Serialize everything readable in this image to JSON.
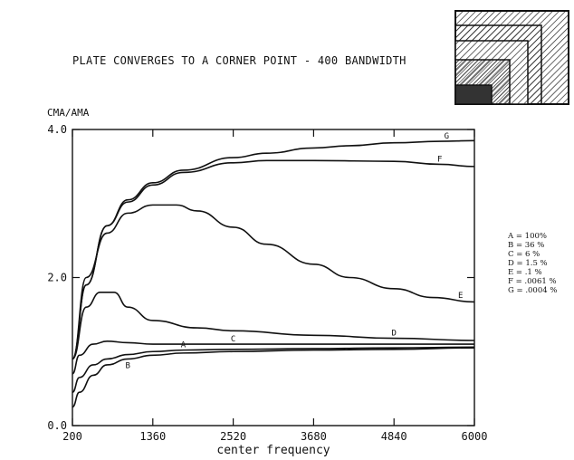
{
  "chart_data": {
    "type": "line",
    "title": "PLATE CONVERGES TO A CORNER POINT - 400 BANDWIDTH",
    "ylabel": "CMA/AMA",
    "xlabel": "center frequency",
    "xlim": [
      200,
      6000
    ],
    "ylim": [
      0,
      4
    ],
    "xticks": [
      "200",
      "1360",
      "2520",
      "3680",
      "4840",
      "6000"
    ],
    "yticks": [
      "0.0",
      "2.0",
      "4.0"
    ],
    "grid": false,
    "legend_position": "right",
    "legend": [
      "A = 100%",
      "B = 36 %",
      "C = 6 %",
      "D = 1.5 %",
      "E = .1 %",
      "F = .0061 %",
      "G = .0004 %"
    ],
    "series": [
      {
        "name": "A",
        "x": [
          200,
          300,
          500,
          700,
          1000,
          1360,
          1800,
          2520,
          3680,
          4840,
          6000
        ],
        "y": [
          0.45,
          0.65,
          0.82,
          0.9,
          0.96,
          1.0,
          1.02,
          1.03,
          1.04,
          1.05,
          1.06
        ]
      },
      {
        "name": "B",
        "x": [
          200,
          300,
          500,
          700,
          1000,
          1360,
          1800,
          2520,
          3680,
          4840,
          6000
        ],
        "y": [
          0.25,
          0.45,
          0.68,
          0.82,
          0.9,
          0.95,
          0.98,
          1.0,
          1.02,
          1.03,
          1.05
        ]
      },
      {
        "name": "C",
        "x": [
          200,
          300,
          500,
          700,
          1000,
          1360,
          2000,
          2520,
          3680,
          4840,
          6000
        ],
        "y": [
          0.7,
          0.95,
          1.1,
          1.14,
          1.12,
          1.1,
          1.1,
          1.1,
          1.1,
          1.1,
          1.1
        ]
      },
      {
        "name": "D",
        "x": [
          200,
          400,
          600,
          800,
          1000,
          1360,
          2000,
          2520,
          3680,
          4840,
          6000
        ],
        "y": [
          0.9,
          1.6,
          1.8,
          1.8,
          1.6,
          1.42,
          1.32,
          1.28,
          1.22,
          1.18,
          1.15
        ]
      },
      {
        "name": "E",
        "x": [
          200,
          400,
          700,
          1000,
          1360,
          1700,
          2000,
          2520,
          3000,
          3680,
          4200,
          4840,
          5400,
          6000
        ],
        "y": [
          0.9,
          2.0,
          2.6,
          2.87,
          2.98,
          2.98,
          2.9,
          2.68,
          2.45,
          2.18,
          2.0,
          1.85,
          1.73,
          1.67
        ]
      },
      {
        "name": "F",
        "x": [
          200,
          400,
          700,
          1000,
          1360,
          1800,
          2520,
          3000,
          3680,
          4840,
          5500,
          6000
        ],
        "y": [
          0.9,
          1.9,
          2.7,
          3.02,
          3.25,
          3.42,
          3.55,
          3.58,
          3.58,
          3.57,
          3.53,
          3.5
        ]
      },
      {
        "name": "G",
        "x": [
          200,
          400,
          700,
          1000,
          1360,
          1800,
          2520,
          3000,
          3680,
          4200,
          4840,
          5500,
          6000
        ],
        "y": [
          0.9,
          1.9,
          2.7,
          3.05,
          3.28,
          3.45,
          3.62,
          3.68,
          3.75,
          3.78,
          3.82,
          3.84,
          3.85
        ]
      }
    ]
  }
}
